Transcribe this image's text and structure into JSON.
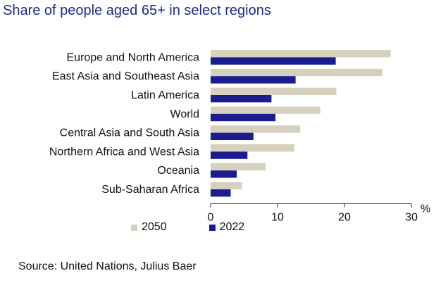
{
  "title": "Share of people aged 65+ in select regions",
  "source": "Source: United Nations, Julius Baer",
  "colors": {
    "series_2050": "#d6d1bf",
    "series_2022": "#1a1d8f",
    "axis": "#222222"
  },
  "chart_data": {
    "type": "bar",
    "orientation": "horizontal",
    "categories": [
      "Europe and North America",
      "East Asia and Southeast Asia",
      "Latin America",
      "World",
      "Central Asia and South Asia",
      "Northern Africa and West Asia",
      "Oceania",
      "Sub-Saharan Africa"
    ],
    "series": [
      {
        "name": "2050",
        "values": [
          26.9,
          25.7,
          18.8,
          16.4,
          13.4,
          12.5,
          8.2,
          4.7
        ]
      },
      {
        "name": "2022",
        "values": [
          18.7,
          12.7,
          9.1,
          9.7,
          6.4,
          5.5,
          3.9,
          3.0
        ]
      }
    ],
    "xlim": [
      0,
      30
    ],
    "xticks": [
      0,
      10,
      20,
      30
    ],
    "x_unit": "%",
    "grid": false,
    "legend_position": "bottom"
  }
}
